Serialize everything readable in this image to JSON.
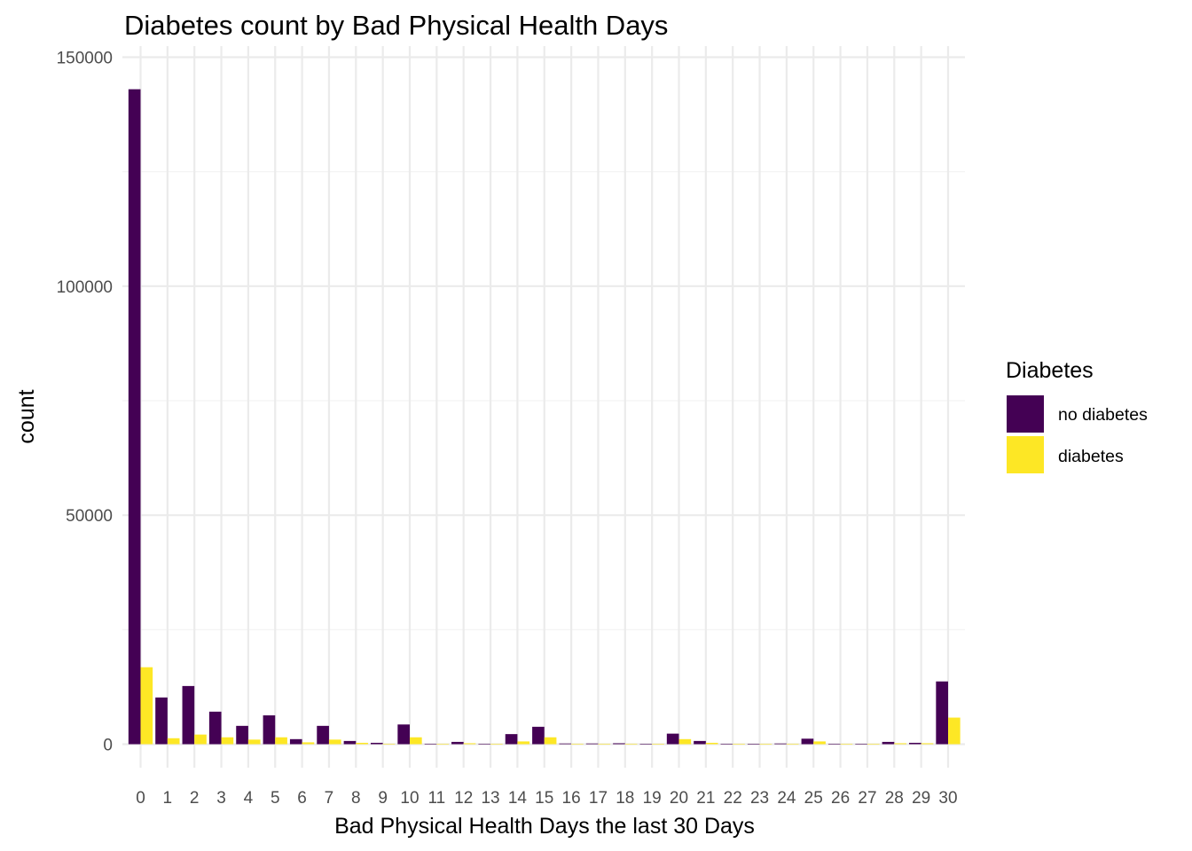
{
  "chart_data": {
    "type": "bar",
    "title": "Diabetes count by Bad Physical Health Days",
    "xlabel": "Bad Physical Health Days the last 30 Days",
    "ylabel": "count",
    "categories": [
      "0",
      "1",
      "2",
      "3",
      "4",
      "5",
      "6",
      "7",
      "8",
      "9",
      "10",
      "11",
      "12",
      "13",
      "14",
      "15",
      "16",
      "17",
      "18",
      "19",
      "20",
      "21",
      "22",
      "23",
      "24",
      "25",
      "26",
      "27",
      "28",
      "29",
      "30"
    ],
    "y_ticks": [
      0,
      50000,
      100000,
      150000
    ],
    "y_tick_labels": [
      "0",
      "50000",
      "100000",
      "150000"
    ],
    "ylim": [
      0,
      150000
    ],
    "grid": true,
    "legend": {
      "title": "Diabetes",
      "position": "right"
    },
    "series": [
      {
        "name": "no diabetes",
        "color": "#440154",
        "values": [
          143000,
          10200,
          12700,
          7100,
          4000,
          6300,
          1100,
          4000,
          700,
          300,
          4300,
          100,
          500,
          100,
          2200,
          3800,
          150,
          150,
          200,
          50,
          2300,
          700,
          100,
          50,
          150,
          1200,
          100,
          100,
          500,
          300,
          13700
        ]
      },
      {
        "name": "diabetes",
        "color": "#FDE725",
        "values": [
          16800,
          1300,
          2100,
          1500,
          1000,
          1500,
          400,
          1000,
          300,
          100,
          1500,
          50,
          200,
          50,
          600,
          1500,
          100,
          100,
          100,
          50,
          1100,
          300,
          50,
          50,
          100,
          600,
          50,
          50,
          200,
          200,
          5800
        ]
      }
    ]
  }
}
